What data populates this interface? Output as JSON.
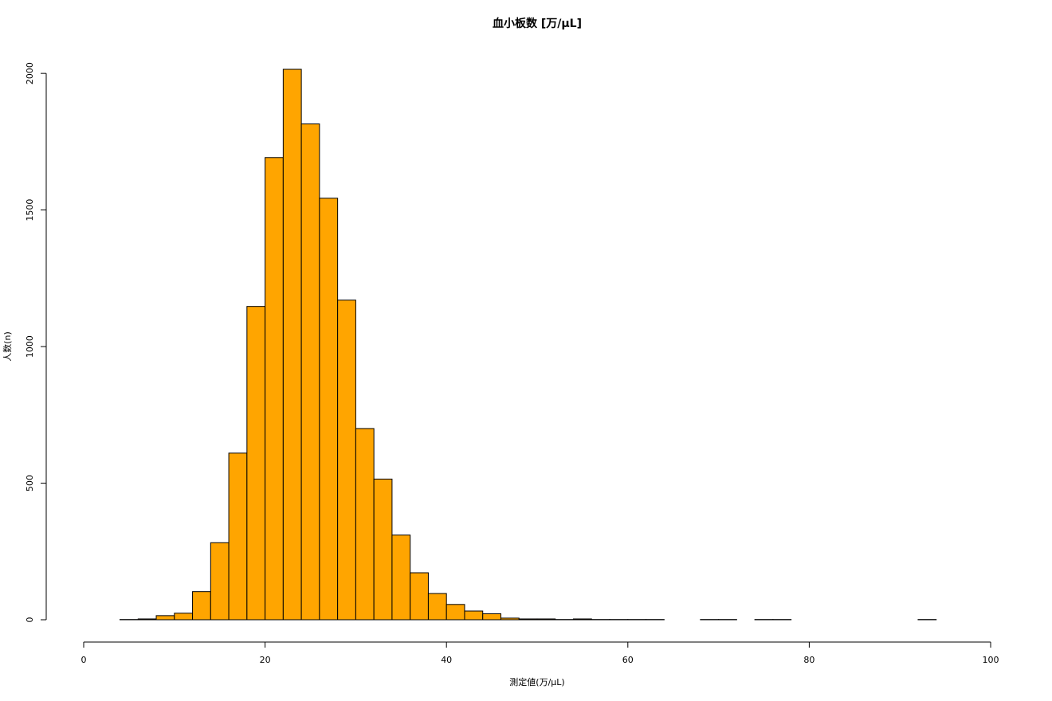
{
  "chart_data": {
    "type": "histogram",
    "title": "血小板数 [万/μL]",
    "x_label": "測定値(万/μL)",
    "y_label": "人数(n)",
    "bins": [
      4,
      6,
      8,
      10,
      12,
      14,
      16,
      18,
      20,
      22,
      24,
      26,
      28,
      30,
      32,
      34,
      36,
      38,
      40,
      42,
      44,
      46,
      48,
      50,
      52,
      54,
      56,
      58,
      60,
      62,
      64,
      66,
      68,
      70,
      72,
      74,
      76,
      78,
      80,
      82,
      84,
      86,
      88,
      90,
      92,
      94
    ],
    "counts": [
      1,
      3,
      15,
      24,
      103,
      282,
      610,
      1147,
      1692,
      2015,
      1815,
      1543,
      1170,
      700,
      515,
      310,
      172,
      96,
      56,
      32,
      22,
      6,
      3,
      3,
      1,
      3,
      1,
      1,
      1,
      1,
      0,
      0,
      1,
      1,
      0,
      1,
      1,
      0,
      0,
      0,
      0,
      0,
      0,
      0,
      1
    ],
    "color": "#ffa500",
    "xlim": [
      0,
      100
    ],
    "xticks": [
      0,
      20,
      40,
      60,
      80,
      100
    ],
    "ylim": [
      0,
      2015
    ],
    "yticks": [
      0,
      500,
      1000,
      1500,
      2000
    ],
    "grid": false
  }
}
